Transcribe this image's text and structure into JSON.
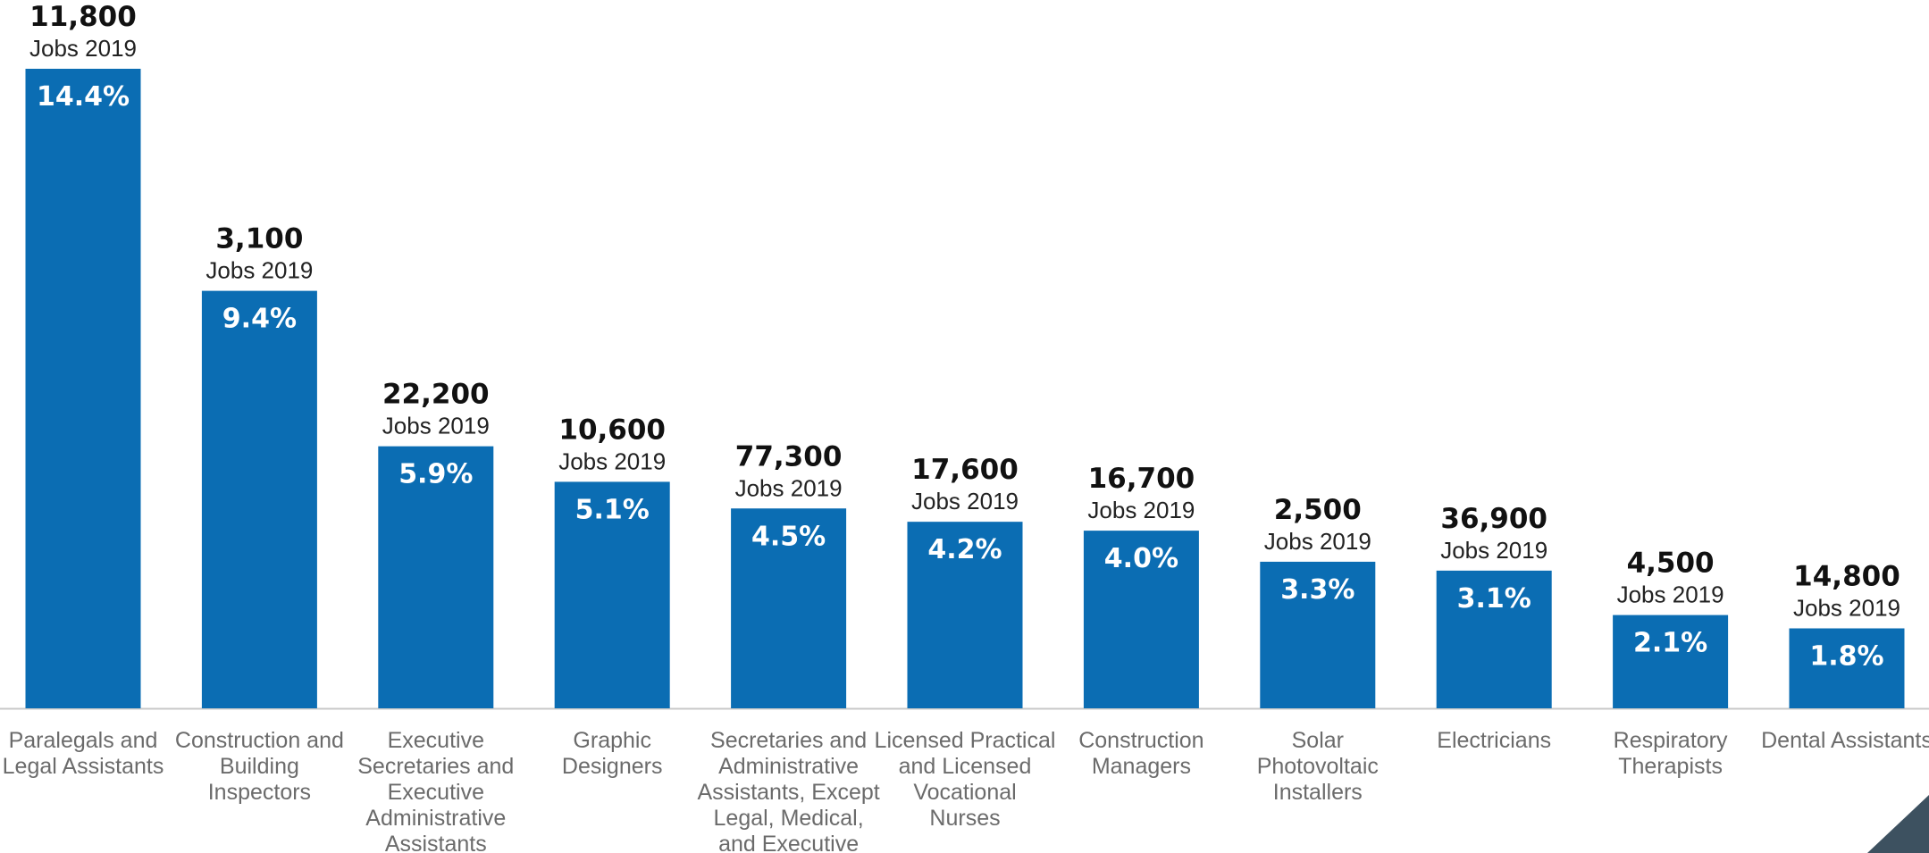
{
  "chart_data": {
    "type": "bar",
    "title": "",
    "xlabel": "",
    "ylabel": "",
    "ylim": [
      0,
      14.4
    ],
    "grid": false,
    "bar_color": "#0b6db3",
    "axis_color": "#c8c8c8",
    "corner_accent_color": "#3d5160",
    "bars": [
      {
        "label": [
          "Paralegals and",
          "Legal Assistants"
        ],
        "value": 14.4,
        "value_label": "14.4%",
        "jobs": "11,800",
        "jobs_caption": "Jobs 2019"
      },
      {
        "label": [
          "Construction and",
          "Building",
          "Inspectors"
        ],
        "value": 9.4,
        "value_label": "9.4%",
        "jobs": "3,100",
        "jobs_caption": "Jobs 2019"
      },
      {
        "label": [
          "Executive",
          "Secretaries and",
          "Executive",
          "Administrative",
          "Assistants"
        ],
        "value": 5.9,
        "value_label": "5.9%",
        "jobs": "22,200",
        "jobs_caption": "Jobs 2019"
      },
      {
        "label": [
          "Graphic",
          "Designers"
        ],
        "value": 5.1,
        "value_label": "5.1%",
        "jobs": "10,600",
        "jobs_caption": "Jobs 2019"
      },
      {
        "label": [
          "Secretaries and",
          "Administrative",
          "Assistants, Except",
          "Legal, Medical,",
          "and Executive"
        ],
        "value": 4.5,
        "value_label": "4.5%",
        "jobs": "77,300",
        "jobs_caption": "Jobs 2019"
      },
      {
        "label": [
          "Licensed Practical",
          "and Licensed",
          "Vocational",
          "Nurses"
        ],
        "value": 4.2,
        "value_label": "4.2%",
        "jobs": "17,600",
        "jobs_caption": "Jobs 2019"
      },
      {
        "label": [
          "Construction",
          "Managers"
        ],
        "value": 4.0,
        "value_label": "4.0%",
        "jobs": "16,700",
        "jobs_caption": "Jobs 2019"
      },
      {
        "label": [
          "Solar",
          "Photovoltaic",
          "Installers"
        ],
        "value": 3.3,
        "value_label": "3.3%",
        "jobs": "2,500",
        "jobs_caption": "Jobs 2019"
      },
      {
        "label": [
          "Electricians"
        ],
        "value": 3.1,
        "value_label": "3.1%",
        "jobs": "36,900",
        "jobs_caption": "Jobs 2019"
      },
      {
        "label": [
          "Respiratory",
          "Therapists"
        ],
        "value": 2.1,
        "value_label": "2.1%",
        "jobs": "4,500",
        "jobs_caption": "Jobs 2019"
      },
      {
        "label": [
          "Dental Assistants"
        ],
        "value": 1.8,
        "value_label": "1.8%",
        "jobs": "14,800",
        "jobs_caption": "Jobs 2019"
      }
    ]
  }
}
